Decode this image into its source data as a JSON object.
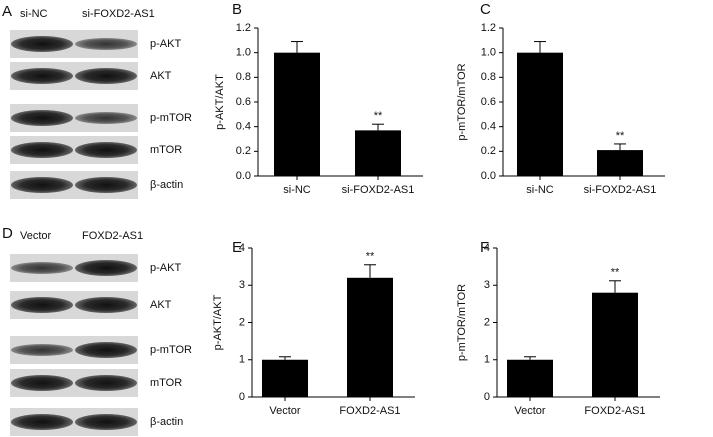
{
  "chart_data": [
    {
      "type": "bar",
      "panel": "B",
      "ylabel": "p-AKT/AKT",
      "categories": [
        "si-NC",
        "si-FOXD2-AS1"
      ],
      "values": [
        1.0,
        0.37
      ],
      "errors": [
        0.09,
        0.05
      ],
      "annotations": [
        null,
        "**"
      ],
      "color": "#000000",
      "ylim": [
        0,
        1.2
      ],
      "yticks": [
        {
          "value": 0,
          "label": "0.0"
        },
        0.2,
        0.4,
        0.6,
        0.8,
        {
          "value": 1,
          "label": "1.0"
        },
        1.2
      ]
    },
    {
      "type": "bar",
      "panel": "C",
      "ylabel": "p-mTOR/mTOR",
      "categories": [
        "si-NC",
        "si-FOXD2-AS1"
      ],
      "values": [
        1.0,
        0.21
      ],
      "errors": [
        0.09,
        0.05
      ],
      "annotations": [
        null,
        "**"
      ],
      "color": "#000000",
      "ylim": [
        0,
        1.2
      ],
      "yticks": [
        {
          "value": 0,
          "label": "0.0"
        },
        0.2,
        0.4,
        0.6,
        0.8,
        {
          "value": 1,
          "label": "1.0"
        },
        1.2
      ]
    },
    {
      "type": "bar",
      "panel": "E",
      "ylabel": "p-AKT/AKT",
      "categories": [
        "Vector",
        "FOXD2-AS1"
      ],
      "values": [
        1.0,
        3.2
      ],
      "errors": [
        0.08,
        0.35
      ],
      "annotations": [
        null,
        "**"
      ],
      "color": "#000000",
      "ylim": [
        0,
        4
      ],
      "yticks": [
        0,
        1,
        2,
        3,
        4
      ]
    },
    {
      "type": "bar",
      "panel": "F",
      "ylabel": "p-mTOR/mTOR",
      "categories": [
        "Vector",
        "FOXD2-AS1"
      ],
      "values": [
        1.0,
        2.8
      ],
      "errors": [
        0.08,
        0.32
      ],
      "annotations": [
        null,
        "**"
      ],
      "color": "#000000",
      "ylim": [
        0,
        4
      ],
      "yticks": [
        0,
        1,
        2,
        3,
        4
      ]
    }
  ],
  "blots": [
    {
      "panel": "A",
      "lanes": [
        "si-NC",
        "si-FOXD2-AS1"
      ],
      "bands": [
        "p-AKT",
        "AKT",
        "p-mTOR",
        "mTOR",
        "β-actin"
      ]
    },
    {
      "panel": "D",
      "lanes": [
        "Vector",
        "FOXD2-AS1"
      ],
      "bands": [
        "p-AKT",
        "AKT",
        "p-mTOR",
        "mTOR",
        "β-actin"
      ]
    }
  ]
}
